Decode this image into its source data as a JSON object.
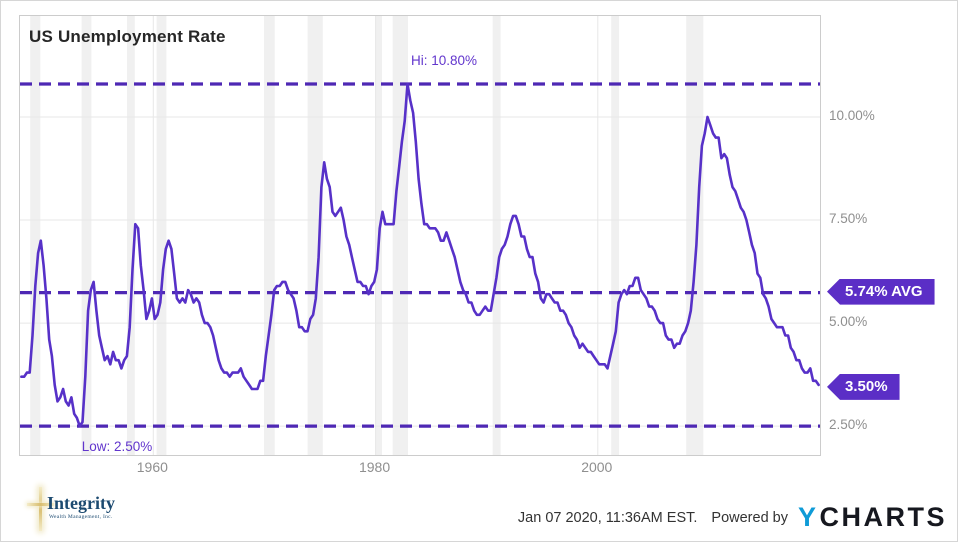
{
  "header": {
    "title": "US Unemployment Rate"
  },
  "annotations": {
    "high_label": "Hi: 10.80%",
    "low_label": "Low: 2.50%",
    "avg_badge": "5.74% AVG",
    "latest_badge": "3.50%"
  },
  "footer": {
    "timestamp": "Jan 07 2020, 11:36AM EST.",
    "powered_by": "Powered by",
    "brand_first_letter": "Y",
    "brand_rest": "CHARTS",
    "logo_name": "Integrity",
    "logo_tagline": "Wealth Management, Inc."
  },
  "colors": {
    "line": "#5731c8",
    "dashed": "#4e28b4",
    "badge": "#5b2ec6",
    "grid": "#e7e7e7",
    "recession_band": "#f0f0f0",
    "axis_text": "#8f8f8f",
    "brand_blue": "#0f9bd7"
  },
  "chart_data": {
    "type": "line",
    "title": "US Unemployment Rate",
    "series_name": "US Unemployment Rate",
    "frequency": "quarterly",
    "x_start": 1948.125,
    "x_step": 0.25,
    "xlim": [
      1948,
      2020
    ],
    "ylim": [
      1.8,
      12.45
    ],
    "high": 10.8,
    "low": 2.5,
    "average": 5.74,
    "latest": 3.5,
    "y_ticks": [
      {
        "label": "10.00%",
        "value": 10.0
      },
      {
        "label": "7.50%",
        "value": 7.5
      },
      {
        "label": "5.00%",
        "value": 5.0
      },
      {
        "label": "2.50%",
        "value": 2.5
      }
    ],
    "x_ticks": [
      {
        "label": "1960",
        "value": 1960
      },
      {
        "label": "1980",
        "value": 1980
      },
      {
        "label": "2000",
        "value": 2000
      }
    ],
    "reference_lines": [
      {
        "name": "high",
        "value": 10.8,
        "label": "Hi: 10.80%"
      },
      {
        "name": "average",
        "value": 5.74,
        "label": "5.74% AVG"
      },
      {
        "name": "low",
        "value": 2.5,
        "label": "Low: 2.50%"
      }
    ],
    "recessions": [
      [
        1948.92,
        1949.83
      ],
      [
        1953.54,
        1954.42
      ],
      [
        1957.63,
        1958.33
      ],
      [
        1960.29,
        1961.17
      ],
      [
        1969.96,
        1970.92
      ],
      [
        1973.88,
        1975.25
      ],
      [
        1980.04,
        1980.58
      ],
      [
        1981.54,
        1982.92
      ],
      [
        1990.54,
        1991.25
      ],
      [
        2001.21,
        2001.92
      ],
      [
        2007.96,
        2009.5
      ]
    ],
    "values": [
      3.7,
      3.7,
      3.8,
      3.8,
      4.7,
      5.9,
      6.7,
      7.0,
      6.4,
      5.6,
      4.6,
      4.2,
      3.5,
      3.1,
      3.2,
      3.4,
      3.1,
      3.0,
      3.2,
      2.8,
      2.7,
      2.5,
      2.6,
      3.7,
      5.3,
      5.8,
      6.0,
      5.3,
      4.7,
      4.4,
      4.1,
      4.2,
      4.0,
      4.3,
      4.1,
      4.1,
      3.9,
      4.1,
      4.2,
      4.9,
      6.3,
      7.4,
      7.3,
      6.4,
      5.8,
      5.1,
      5.3,
      5.6,
      5.1,
      5.2,
      5.5,
      6.3,
      6.8,
      7.0,
      6.8,
      6.2,
      5.6,
      5.5,
      5.6,
      5.5,
      5.8,
      5.7,
      5.5,
      5.6,
      5.5,
      5.2,
      5.0,
      5.0,
      4.9,
      4.7,
      4.4,
      4.1,
      3.9,
      3.8,
      3.8,
      3.7,
      3.8,
      3.8,
      3.8,
      3.9,
      3.7,
      3.6,
      3.5,
      3.4,
      3.4,
      3.4,
      3.6,
      3.6,
      4.2,
      4.7,
      5.2,
      5.8,
      5.9,
      5.9,
      6.0,
      6.0,
      5.8,
      5.7,
      5.6,
      5.3,
      4.9,
      4.9,
      4.8,
      4.8,
      5.1,
      5.2,
      5.6,
      6.6,
      8.3,
      8.9,
      8.5,
      8.3,
      7.7,
      7.6,
      7.7,
      7.8,
      7.5,
      7.1,
      6.9,
      6.6,
      6.3,
      6.0,
      6.0,
      5.9,
      5.9,
      5.7,
      5.9,
      6.0,
      6.3,
      7.3,
      7.7,
      7.4,
      7.4,
      7.4,
      7.4,
      8.2,
      8.8,
      9.4,
      9.9,
      10.8,
      10.4,
      10.1,
      9.4,
      8.5,
      7.9,
      7.4,
      7.4,
      7.3,
      7.3,
      7.3,
      7.2,
      7.0,
      7.0,
      7.2,
      7.0,
      6.8,
      6.6,
      6.3,
      6.0,
      5.8,
      5.7,
      5.5,
      5.5,
      5.3,
      5.2,
      5.2,
      5.3,
      5.4,
      5.3,
      5.3,
      5.7,
      6.1,
      6.6,
      6.8,
      6.9,
      7.1,
      7.4,
      7.6,
      7.6,
      7.4,
      7.1,
      7.1,
      6.8,
      6.6,
      6.6,
      6.2,
      6.0,
      5.6,
      5.5,
      5.7,
      5.7,
      5.6,
      5.5,
      5.5,
      5.3,
      5.3,
      5.2,
      5.0,
      4.9,
      4.7,
      4.6,
      4.4,
      4.5,
      4.4,
      4.3,
      4.3,
      4.2,
      4.1,
      4.0,
      4.0,
      4.0,
      3.9,
      4.2,
      4.5,
      4.8,
      5.5,
      5.7,
      5.8,
      5.7,
      5.9,
      5.9,
      6.1,
      6.1,
      5.8,
      5.7,
      5.6,
      5.4,
      5.4,
      5.3,
      5.1,
      5.0,
      5.0,
      4.7,
      4.6,
      4.6,
      4.4,
      4.5,
      4.5,
      4.7,
      4.8,
      5.0,
      5.3,
      6.0,
      6.9,
      8.3,
      9.3,
      9.6,
      10.0,
      9.8,
      9.6,
      9.5,
      9.5,
      9.0,
      9.1,
      9.0,
      8.6,
      8.3,
      8.2,
      8.0,
      7.8,
      7.7,
      7.5,
      7.2,
      6.9,
      6.7,
      6.2,
      6.1,
      5.7,
      5.6,
      5.4,
      5.1,
      5.0,
      4.9,
      4.9,
      4.9,
      4.7,
      4.7,
      4.4,
      4.3,
      4.1,
      4.1,
      3.9,
      3.8,
      3.8,
      3.9,
      3.6,
      3.6,
      3.5
    ]
  }
}
